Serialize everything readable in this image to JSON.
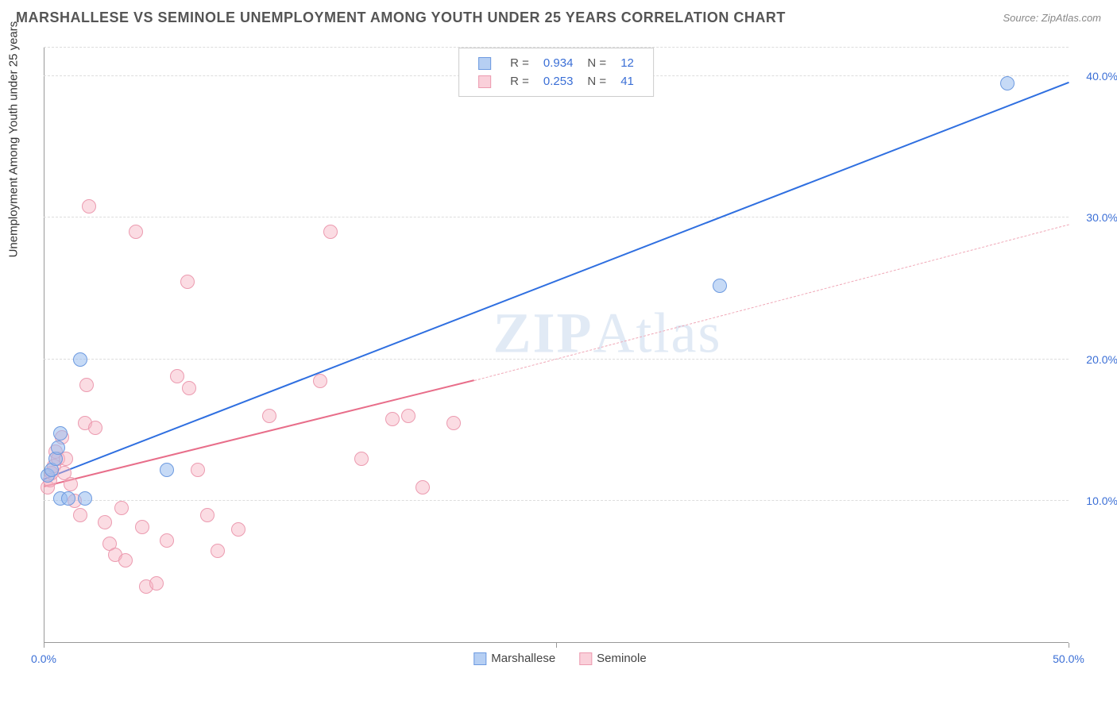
{
  "title": "MARSHALLESE VS SEMINOLE UNEMPLOYMENT AMONG YOUTH UNDER 25 YEARS CORRELATION CHART",
  "source": "Source: ZipAtlas.com",
  "yaxis_title": "Unemployment Among Youth under 25 years",
  "watermark": "ZIPAtlas",
  "chart": {
    "type": "scatter",
    "xlim": [
      0,
      50
    ],
    "ylim": [
      0,
      42
    ],
    "x_ticks": [
      0,
      25,
      50
    ],
    "x_tick_labels": [
      "0.0%",
      "",
      "50.0%"
    ],
    "y_ticks_right": [
      10,
      20,
      30,
      40
    ],
    "y_tick_labels": [
      "10.0%",
      "20.0%",
      "30.0%",
      "40.0%"
    ],
    "grid_y": [
      10,
      20,
      30,
      40,
      42
    ],
    "grid_color": "#dddddd",
    "background": "#ffffff",
    "series": {
      "blue": {
        "label": "Marshallese",
        "color_fill": "rgba(151,187,238,0.55)",
        "color_stroke": "#6d9ae0",
        "trend_color": "#2f6fe0",
        "R": "0.934",
        "N": "12",
        "trend_start": [
          0,
          11.5
        ],
        "trend_end": [
          50,
          39.5
        ],
        "points": [
          [
            0.2,
            11.8
          ],
          [
            0.4,
            12.2
          ],
          [
            0.6,
            13.0
          ],
          [
            0.7,
            13.8
          ],
          [
            0.8,
            14.8
          ],
          [
            0.8,
            10.2
          ],
          [
            1.2,
            10.2
          ],
          [
            2.0,
            10.2
          ],
          [
            1.8,
            20.0
          ],
          [
            6.0,
            12.2
          ],
          [
            33.0,
            25.2
          ],
          [
            47.0,
            39.5
          ]
        ]
      },
      "pink": {
        "label": "Seminole",
        "color_fill": "rgba(247,177,193,0.45)",
        "color_stroke": "#ec9bb0",
        "trend_color": "#e86e8a",
        "R": "0.253",
        "N": "41",
        "trend_solid_start": [
          0,
          11.0
        ],
        "trend_solid_end": [
          21,
          18.5
        ],
        "trend_dash_end": [
          50,
          29.5
        ],
        "points": [
          [
            0.2,
            11.0
          ],
          [
            0.3,
            11.5
          ],
          [
            0.4,
            12.0
          ],
          [
            0.5,
            12.5
          ],
          [
            0.6,
            13.5
          ],
          [
            0.7,
            13.0
          ],
          [
            0.9,
            14.5
          ],
          [
            1.0,
            12.0
          ],
          [
            1.1,
            13.0
          ],
          [
            1.3,
            11.2
          ],
          [
            1.5,
            10.0
          ],
          [
            1.8,
            9.0
          ],
          [
            2.0,
            15.5
          ],
          [
            2.1,
            18.2
          ],
          [
            2.2,
            30.8
          ],
          [
            2.5,
            15.2
          ],
          [
            3.0,
            8.5
          ],
          [
            3.2,
            7.0
          ],
          [
            3.5,
            6.2
          ],
          [
            3.8,
            9.5
          ],
          [
            4.0,
            5.8
          ],
          [
            4.5,
            29.0
          ],
          [
            4.8,
            8.2
          ],
          [
            5.0,
            4.0
          ],
          [
            5.5,
            4.2
          ],
          [
            6.0,
            7.2
          ],
          [
            6.5,
            18.8
          ],
          [
            7.0,
            25.5
          ],
          [
            7.1,
            18.0
          ],
          [
            7.5,
            12.2
          ],
          [
            8.0,
            9.0
          ],
          [
            8.5,
            6.5
          ],
          [
            9.5,
            8.0
          ],
          [
            11.0,
            16.0
          ],
          [
            13.5,
            18.5
          ],
          [
            14.0,
            29.0
          ],
          [
            15.5,
            13.0
          ],
          [
            17.0,
            15.8
          ],
          [
            17.8,
            16.0
          ],
          [
            18.5,
            11.0
          ],
          [
            20.0,
            15.5
          ]
        ]
      }
    }
  },
  "legend_top": {
    "rows": [
      {
        "sw": "blue",
        "R_label": "R =",
        "R": "0.934",
        "N_label": "N =",
        "N": "12"
      },
      {
        "sw": "pink",
        "R_label": "R =",
        "R": "0.253",
        "N_label": "N =",
        "N": "41"
      }
    ]
  },
  "legend_bottom": {
    "items": [
      {
        "sw": "blue",
        "label": "Marshallese"
      },
      {
        "sw": "pink",
        "label": "Seminole"
      }
    ]
  }
}
